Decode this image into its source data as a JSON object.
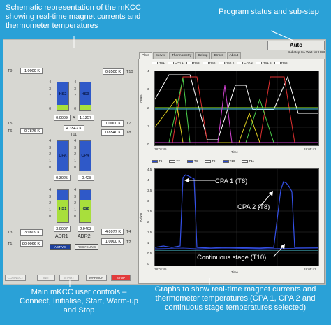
{
  "callouts": {
    "schematic": "Schematic representation of the mKCC showing real-time magnet currents and thermometer temperatures",
    "status": "Program status and sub-step",
    "controls": "Main mKCC user controls – Connect, Initialise, Start, Warm-up and Stop",
    "graphs": "Graphs to show real-time magnet currents and thermometer temperatures (CPA 1, CPA 2 and continuous stage temperatures selected)"
  },
  "status": {
    "mode": "Auto",
    "substep": "Substep 8A Wait for HS3"
  },
  "thermometers": {
    "T9": {
      "label": "T9",
      "value": "1.0000 K"
    },
    "T10": {
      "label": "T10",
      "value": "0.8500 K"
    },
    "T5": {
      "label": "T5",
      "value": "0.0009"
    },
    "T6": {
      "label": "T6",
      "value": "0.7876 K"
    },
    "T7": {
      "label": "T7",
      "value": "1.0000 K"
    },
    "T8": {
      "label": "T8",
      "value": "0.8540 K"
    },
    "T11": {
      "label": "T11",
      "value": "4.3542 K"
    },
    "T3": {
      "label": "T3",
      "value": "3.9809 K"
    },
    "T1": {
      "label": "T1",
      "value": "80.0066 K"
    },
    "T4": {
      "label": "T4",
      "value": "4.0977 K"
    },
    "T2": {
      "label": "T2",
      "value": "1.0000 K"
    }
  },
  "center_small": {
    "a_label": "A",
    "a_value": "1.1257"
  },
  "tanks": {
    "hs1": {
      "name": "HS2",
      "fill": 0.2,
      "color": "#a8df3c"
    },
    "hs2": {
      "name": "HS3",
      "fill": 0.2,
      "color": "#a8df3c"
    },
    "cpa1": {
      "name": "CPA",
      "fill": 0.0,
      "color": "#a8df3c"
    },
    "cpa2": {
      "name": "CPA",
      "fill": 0.0,
      "color": "#a8df3c"
    },
    "adr1": {
      "name": "HS1",
      "fill": 0.7,
      "color": "#a8df3c"
    },
    "adr2": {
      "name": "HS2",
      "fill": 0.7,
      "color": "#a8df3c"
    }
  },
  "tank_scale": [
    "4",
    "3",
    "2",
    "1",
    "0"
  ],
  "cpa_values": {
    "left": "0.3025",
    "right": "0.428"
  },
  "adr_values": {
    "left": "3.0007",
    "right": "2.9493"
  },
  "adr_labels": {
    "left": "ADR1",
    "right": "ADR2"
  },
  "adr_status": {
    "left": "ACTIVE",
    "right": "RECYCLING"
  },
  "buttons": {
    "connect": "CONNECT",
    "initialise": "INIT",
    "start": "START",
    "warmup": "WARMUP",
    "stop": "STOP"
  },
  "tabs": [
    "Plots",
    "Server",
    "Thermometry",
    "Debug",
    "Errors",
    "About"
  ],
  "top_graph": {
    "legend": [
      "HS1",
      "CPA 1",
      "HS3",
      "HS2",
      "HS2 2",
      "CPA 2",
      "HS1 2",
      "HS2"
    ],
    "ylabel": "Amps",
    "xlabel": "Time",
    "x_start": "18:01:45",
    "x_end": "18:05:41",
    "yticks": [
      "4",
      "3",
      "2",
      "1",
      "0"
    ]
  },
  "bottom_graph": {
    "legend": [
      "T6",
      "T7",
      "T8",
      "T9",
      "T10",
      "T11"
    ],
    "ylabel": "Kelvin",
    "xlabel": "Time",
    "x_start": "18:01:45",
    "x_end": "18:05:41",
    "yticks": [
      "4.5",
      "4",
      "3.5",
      "3",
      "2.5",
      "2",
      "1.5",
      "1",
      "0.5",
      "0"
    ],
    "annotations": {
      "cpa1": "CPA 1 (T6)",
      "cpa2": "CPA 2 (T8)",
      "cont": "Continuous stage (T10)"
    }
  },
  "colors": {
    "background": "#2aa1d7",
    "panel": "#d7d7d2",
    "tank_blue": "#2f59c8",
    "tank_green": "#a8df3c",
    "stop_red": "#e23b3b"
  }
}
